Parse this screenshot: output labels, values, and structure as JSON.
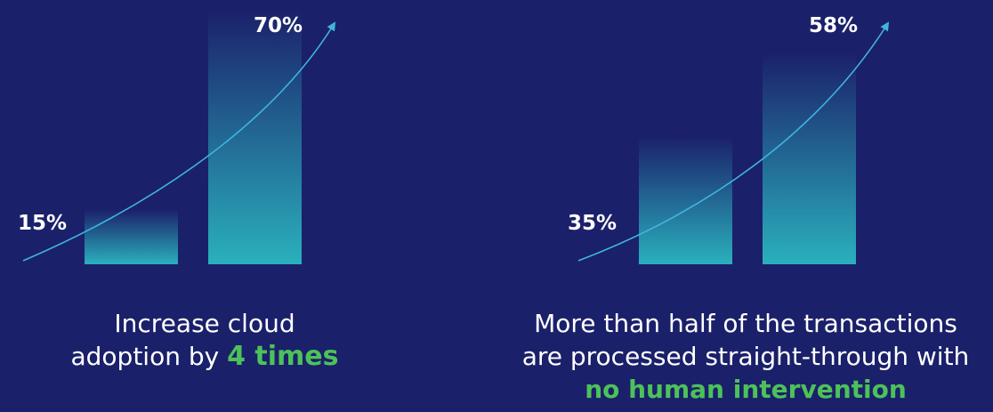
{
  "colors": {
    "background": "#1b206a",
    "bar_top": "#1b206a",
    "bar_bottom": "#2ab0bd",
    "trend_line": "#3fb6e0",
    "highlight": "#4cc259",
    "text": "#ffffff"
  },
  "chart_data": [
    {
      "type": "bar",
      "values": [
        15,
        70
      ],
      "labels": [
        "15%",
        "70%"
      ],
      "unit": "%",
      "trend_arrow": true,
      "caption": {
        "line1": "Increase cloud",
        "line2_prefix": "adoption by",
        "highlight": "4 times"
      }
    },
    {
      "type": "bar",
      "values": [
        35,
        58
      ],
      "labels": [
        "35%",
        "58%"
      ],
      "unit": "%",
      "trend_arrow": true,
      "caption": {
        "line1": "More than half of the transactions",
        "line2": "are processed straight-through with",
        "highlight": "no human intervention"
      }
    }
  ]
}
